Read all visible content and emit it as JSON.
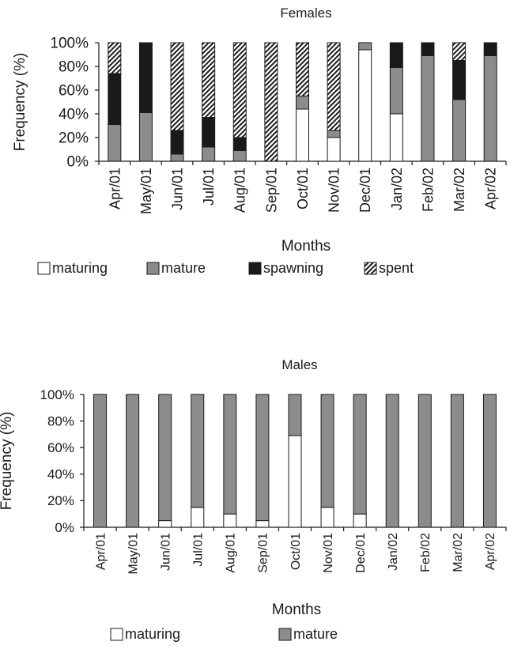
{
  "chart_data": [
    {
      "type": "bar",
      "stacked": true,
      "title": "Females",
      "xlabel": "Months",
      "ylabel": "Frequency (%)",
      "ylim": [
        0,
        100
      ],
      "yticks": [
        "0%",
        "20%",
        "40%",
        "60%",
        "80%",
        "100%"
      ],
      "categories": [
        "Apr/01",
        "May/01",
        "Jun/01",
        "Jul/01",
        "Aug/01",
        "Sep/01",
        "Oct/01",
        "Nov/01",
        "Dec/01",
        "Jan/02",
        "Feb/02",
        "Mar/02",
        "Apr/02"
      ],
      "series": [
        {
          "name": "maturing",
          "fill": "#ffffff",
          "values": [
            0,
            0,
            0,
            0,
            0,
            0,
            44,
            20,
            94,
            40,
            0,
            0,
            0
          ]
        },
        {
          "name": "mature",
          "fill": "#8c8c8c",
          "values": [
            31,
            41,
            6,
            12,
            9,
            0,
            11,
            6,
            6,
            39,
            89,
            52,
            89
          ]
        },
        {
          "name": "spawning",
          "fill": "#1a1a1a",
          "values": [
            43,
            59,
            20,
            25,
            11,
            0,
            0,
            0,
            0,
            21,
            11,
            33,
            11
          ]
        },
        {
          "name": "spent",
          "fill": "hatch",
          "values": [
            26,
            0,
            74,
            63,
            80,
            100,
            45,
            74,
            0,
            0,
            0,
            15,
            0
          ]
        }
      ],
      "legend_position": "bottom"
    },
    {
      "type": "bar",
      "stacked": true,
      "title": "Males",
      "xlabel": "Months",
      "ylabel": "Frequency (%)",
      "ylim": [
        0,
        100
      ],
      "yticks": [
        "0%",
        "20%",
        "40%",
        "60%",
        "80%",
        "100%"
      ],
      "categories": [
        "Apr/01",
        "May/01",
        "Jun/01",
        "Jul/01",
        "Aug/01",
        "Sep/01",
        "Oct/01",
        "Nov/01",
        "Dec/01",
        "Jan/02",
        "Feb/02",
        "Mar/02",
        "Apr/02"
      ],
      "series": [
        {
          "name": "maturing",
          "fill": "#ffffff",
          "values": [
            0,
            0,
            5,
            15,
            10,
            5,
            69,
            15,
            10,
            0,
            0,
            0,
            0
          ]
        },
        {
          "name": "mature",
          "fill": "#8c8c8c",
          "values": [
            100,
            100,
            95,
            85,
            90,
            95,
            31,
            85,
            90,
            100,
            100,
            100,
            100
          ]
        }
      ],
      "legend_position": "bottom"
    }
  ]
}
